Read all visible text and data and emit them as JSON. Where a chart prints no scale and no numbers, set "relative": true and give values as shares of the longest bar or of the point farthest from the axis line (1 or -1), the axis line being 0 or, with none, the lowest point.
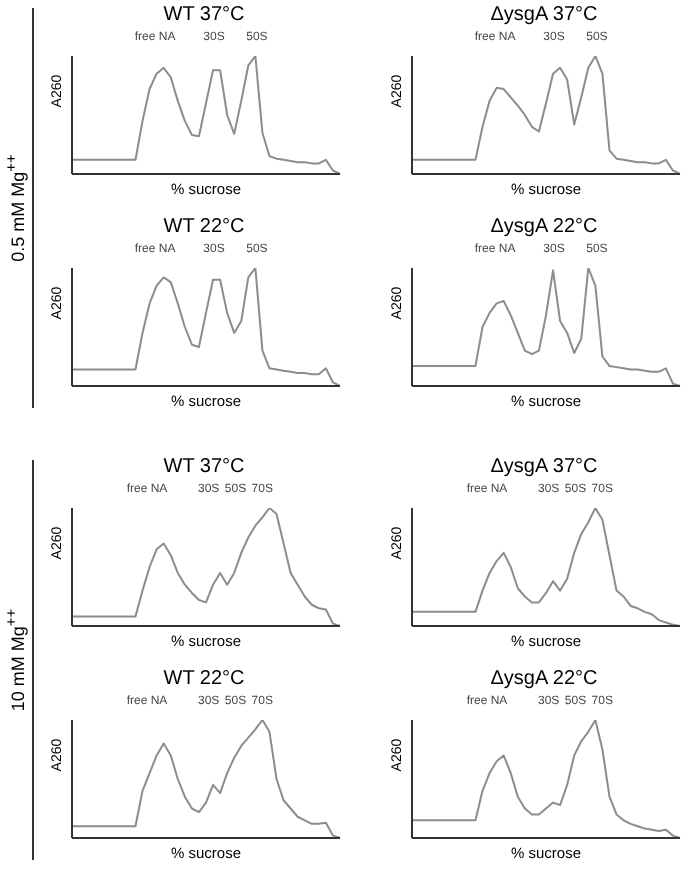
{
  "chart_data": [
    {
      "type": "line",
      "title": "WT 37°C",
      "subtitle": "0.5 mM Mg$^{++}$",
      "xlabel": "% sucrose",
      "ylabel": "A260",
      "annotations": [
        "free NA",
        "30S",
        "50S"
      ],
      "relative": true,
      "categories": [
        null,
        null,
        null,
        null,
        null,
        null,
        null,
        null,
        null,
        null,
        null,
        null,
        null,
        null,
        null,
        null,
        null,
        null,
        null,
        null,
        null,
        null,
        null,
        null,
        null,
        null,
        null,
        null,
        null,
        null,
        null,
        null,
        null,
        null,
        null,
        null,
        null,
        null,
        null
      ],
      "series": [
        {
          "color": "#8c8c8c",
          "values": [
            0.12,
            0.12,
            0.12,
            0.12,
            0.12,
            0.12,
            0.12,
            0.12,
            0.12,
            0.12,
            0.45,
            0.72,
            0.85,
            0.9,
            0.82,
            0.62,
            0.45,
            0.33,
            0.32,
            0.6,
            0.88,
            0.88,
            0.5,
            0.34,
            0.62,
            0.92,
            1,
            0.35,
            0.15,
            0.13,
            0.12,
            0.11,
            0.1,
            0.1,
            0.09,
            0.09,
            0.12,
            0.03,
            0
          ]
        }
      ]
    },
    {
      "type": "line",
      "title": "ΔysgA 37°C",
      "xlabel": "% sucrose",
      "ylabel": "A260",
      "annotations": [
        "free NA",
        "30S",
        "50S"
      ],
      "relative": true,
      "categories": [
        null,
        null,
        null,
        null,
        null,
        null,
        null,
        null,
        null,
        null,
        null,
        null,
        null,
        null,
        null,
        null,
        null,
        null,
        null,
        null,
        null,
        null,
        null,
        null,
        null,
        null,
        null,
        null,
        null,
        null,
        null,
        null,
        null,
        null,
        null,
        null,
        null,
        null,
        null
      ],
      "series": [
        {
          "color": "#8c8c8c",
          "values": [
            0.12,
            0.12,
            0.12,
            0.12,
            0.12,
            0.12,
            0.12,
            0.12,
            0.12,
            0.12,
            0.4,
            0.62,
            0.73,
            0.72,
            0.65,
            0.58,
            0.5,
            0.4,
            0.36,
            0.6,
            0.85,
            0.9,
            0.8,
            0.42,
            0.65,
            0.9,
            1,
            0.85,
            0.2,
            0.13,
            0.12,
            0.11,
            0.1,
            0.1,
            0.09,
            0.09,
            0.12,
            0.03,
            0
          ]
        }
      ]
    },
    {
      "type": "line",
      "title": "WT 22°C",
      "xlabel": "% sucrose",
      "ylabel": "A260",
      "annotations": [
        "free NA",
        "30S",
        "50S"
      ],
      "relative": true,
      "categories": [
        null,
        null,
        null,
        null,
        null,
        null,
        null,
        null,
        null,
        null,
        null,
        null,
        null,
        null,
        null,
        null,
        null,
        null,
        null,
        null,
        null,
        null,
        null,
        null,
        null,
        null,
        null,
        null,
        null,
        null,
        null,
        null,
        null,
        null,
        null,
        null,
        null,
        null,
        null
      ],
      "series": [
        {
          "color": "#8c8c8c",
          "values": [
            0.14,
            0.14,
            0.14,
            0.14,
            0.14,
            0.14,
            0.14,
            0.14,
            0.14,
            0.14,
            0.45,
            0.7,
            0.85,
            0.92,
            0.88,
            0.7,
            0.5,
            0.35,
            0.33,
            0.62,
            0.9,
            0.9,
            0.62,
            0.45,
            0.55,
            0.92,
            1,
            0.3,
            0.15,
            0.14,
            0.13,
            0.12,
            0.11,
            0.11,
            0.1,
            0.1,
            0.15,
            0.03,
            0
          ]
        }
      ]
    },
    {
      "type": "line",
      "title": "ΔysgA 22°C",
      "xlabel": "% sucrose",
      "ylabel": "A260",
      "annotations": [
        "free NA",
        "30S",
        "50S"
      ],
      "relative": true,
      "categories": [
        null,
        null,
        null,
        null,
        null,
        null,
        null,
        null,
        null,
        null,
        null,
        null,
        null,
        null,
        null,
        null,
        null,
        null,
        null,
        null,
        null,
        null,
        null,
        null,
        null,
        null,
        null,
        null,
        null,
        null,
        null,
        null,
        null,
        null,
        null,
        null,
        null,
        null,
        null
      ],
      "series": [
        {
          "color": "#8c8c8c",
          "values": [
            0.17,
            0.17,
            0.17,
            0.17,
            0.17,
            0.17,
            0.17,
            0.17,
            0.17,
            0.17,
            0.5,
            0.62,
            0.7,
            0.72,
            0.6,
            0.45,
            0.3,
            0.27,
            0.3,
            0.6,
            0.98,
            0.55,
            0.45,
            0.28,
            0.4,
            1,
            0.85,
            0.25,
            0.17,
            0.16,
            0.15,
            0.14,
            0.14,
            0.13,
            0.12,
            0.12,
            0.15,
            0.02,
            0
          ]
        }
      ]
    },
    {
      "type": "line",
      "title": "WT 37°C",
      "subtitle": "10 mM Mg$^{++}$",
      "xlabel": "% sucrose",
      "ylabel": "A260",
      "annotations": [
        "free NA",
        "30S",
        "50S",
        "70S"
      ],
      "relative": true,
      "categories": [
        null,
        null,
        null,
        null,
        null,
        null,
        null,
        null,
        null,
        null,
        null,
        null,
        null,
        null,
        null,
        null,
        null,
        null,
        null,
        null,
        null,
        null,
        null,
        null,
        null,
        null,
        null,
        null,
        null,
        null,
        null,
        null,
        null,
        null,
        null,
        null,
        null,
        null,
        null
      ],
      "series": [
        {
          "color": "#8c8c8c",
          "values": [
            0.08,
            0.08,
            0.08,
            0.08,
            0.08,
            0.08,
            0.08,
            0.08,
            0.08,
            0.08,
            0.3,
            0.5,
            0.65,
            0.7,
            0.6,
            0.45,
            0.35,
            0.28,
            0.22,
            0.2,
            0.35,
            0.45,
            0.35,
            0.45,
            0.62,
            0.75,
            0.85,
            0.92,
            1,
            0.95,
            0.7,
            0.45,
            0.35,
            0.25,
            0.18,
            0.15,
            0.14,
            0.02,
            0
          ]
        }
      ]
    },
    {
      "type": "line",
      "title": "ΔysgA 37°C",
      "xlabel": "% sucrose",
      "ylabel": "A260",
      "annotations": [
        "free NA",
        "30S",
        "50S",
        "70S"
      ],
      "relative": true,
      "categories": [
        null,
        null,
        null,
        null,
        null,
        null,
        null,
        null,
        null,
        null,
        null,
        null,
        null,
        null,
        null,
        null,
        null,
        null,
        null,
        null,
        null,
        null,
        null,
        null,
        null,
        null,
        null,
        null,
        null,
        null,
        null,
        null,
        null,
        null,
        null,
        null,
        null,
        null,
        null
      ],
      "series": [
        {
          "color": "#8c8c8c",
          "values": [
            0.12,
            0.12,
            0.12,
            0.12,
            0.12,
            0.12,
            0.12,
            0.12,
            0.12,
            0.12,
            0.3,
            0.45,
            0.55,
            0.62,
            0.5,
            0.32,
            0.25,
            0.2,
            0.2,
            0.28,
            0.38,
            0.3,
            0.4,
            0.62,
            0.78,
            0.88,
            1,
            0.9,
            0.6,
            0.3,
            0.25,
            0.17,
            0.15,
            0.12,
            0.1,
            0.05,
            0.03,
            0.01,
            0
          ]
        }
      ]
    },
    {
      "type": "line",
      "title": "WT 22°C",
      "xlabel": "% sucrose",
      "ylabel": "A260",
      "annotations": [
        "free NA",
        "30S",
        "50S",
        "70S"
      ],
      "relative": true,
      "categories": [
        null,
        null,
        null,
        null,
        null,
        null,
        null,
        null,
        null,
        null,
        null,
        null,
        null,
        null,
        null,
        null,
        null,
        null,
        null,
        null,
        null,
        null,
        null,
        null,
        null,
        null,
        null,
        null,
        null,
        null,
        null,
        null,
        null,
        null,
        null,
        null,
        null,
        null,
        null
      ],
      "series": [
        {
          "color": "#8c8c8c",
          "values": [
            0.1,
            0.1,
            0.1,
            0.1,
            0.1,
            0.1,
            0.1,
            0.1,
            0.1,
            0.1,
            0.4,
            0.55,
            0.7,
            0.8,
            0.7,
            0.5,
            0.35,
            0.25,
            0.22,
            0.3,
            0.45,
            0.38,
            0.55,
            0.68,
            0.78,
            0.85,
            0.92,
            1,
            0.9,
            0.5,
            0.32,
            0.25,
            0.18,
            0.15,
            0.12,
            0.12,
            0.13,
            0.02,
            0
          ]
        }
      ]
    },
    {
      "type": "line",
      "title": "ΔysgA 22°C",
      "xlabel": "% sucrose",
      "ylabel": "A260",
      "annotations": [
        "free NA",
        "30S",
        "50S",
        "70S"
      ],
      "relative": true,
      "categories": [
        null,
        null,
        null,
        null,
        null,
        null,
        null,
        null,
        null,
        null,
        null,
        null,
        null,
        null,
        null,
        null,
        null,
        null,
        null,
        null,
        null,
        null,
        null,
        null,
        null,
        null,
        null,
        null,
        null,
        null,
        null,
        null,
        null,
        null,
        null,
        null,
        null,
        null,
        null
      ],
      "series": [
        {
          "color": "#8c8c8c",
          "values": [
            0.15,
            0.15,
            0.15,
            0.15,
            0.15,
            0.15,
            0.15,
            0.15,
            0.15,
            0.15,
            0.4,
            0.55,
            0.65,
            0.7,
            0.55,
            0.35,
            0.25,
            0.2,
            0.2,
            0.25,
            0.3,
            0.28,
            0.45,
            0.7,
            0.82,
            0.9,
            1,
            0.75,
            0.35,
            0.2,
            0.15,
            0.12,
            0.1,
            0.08,
            0.07,
            0.06,
            0.07,
            0.02,
            0
          ]
        }
      ]
    }
  ]
}
